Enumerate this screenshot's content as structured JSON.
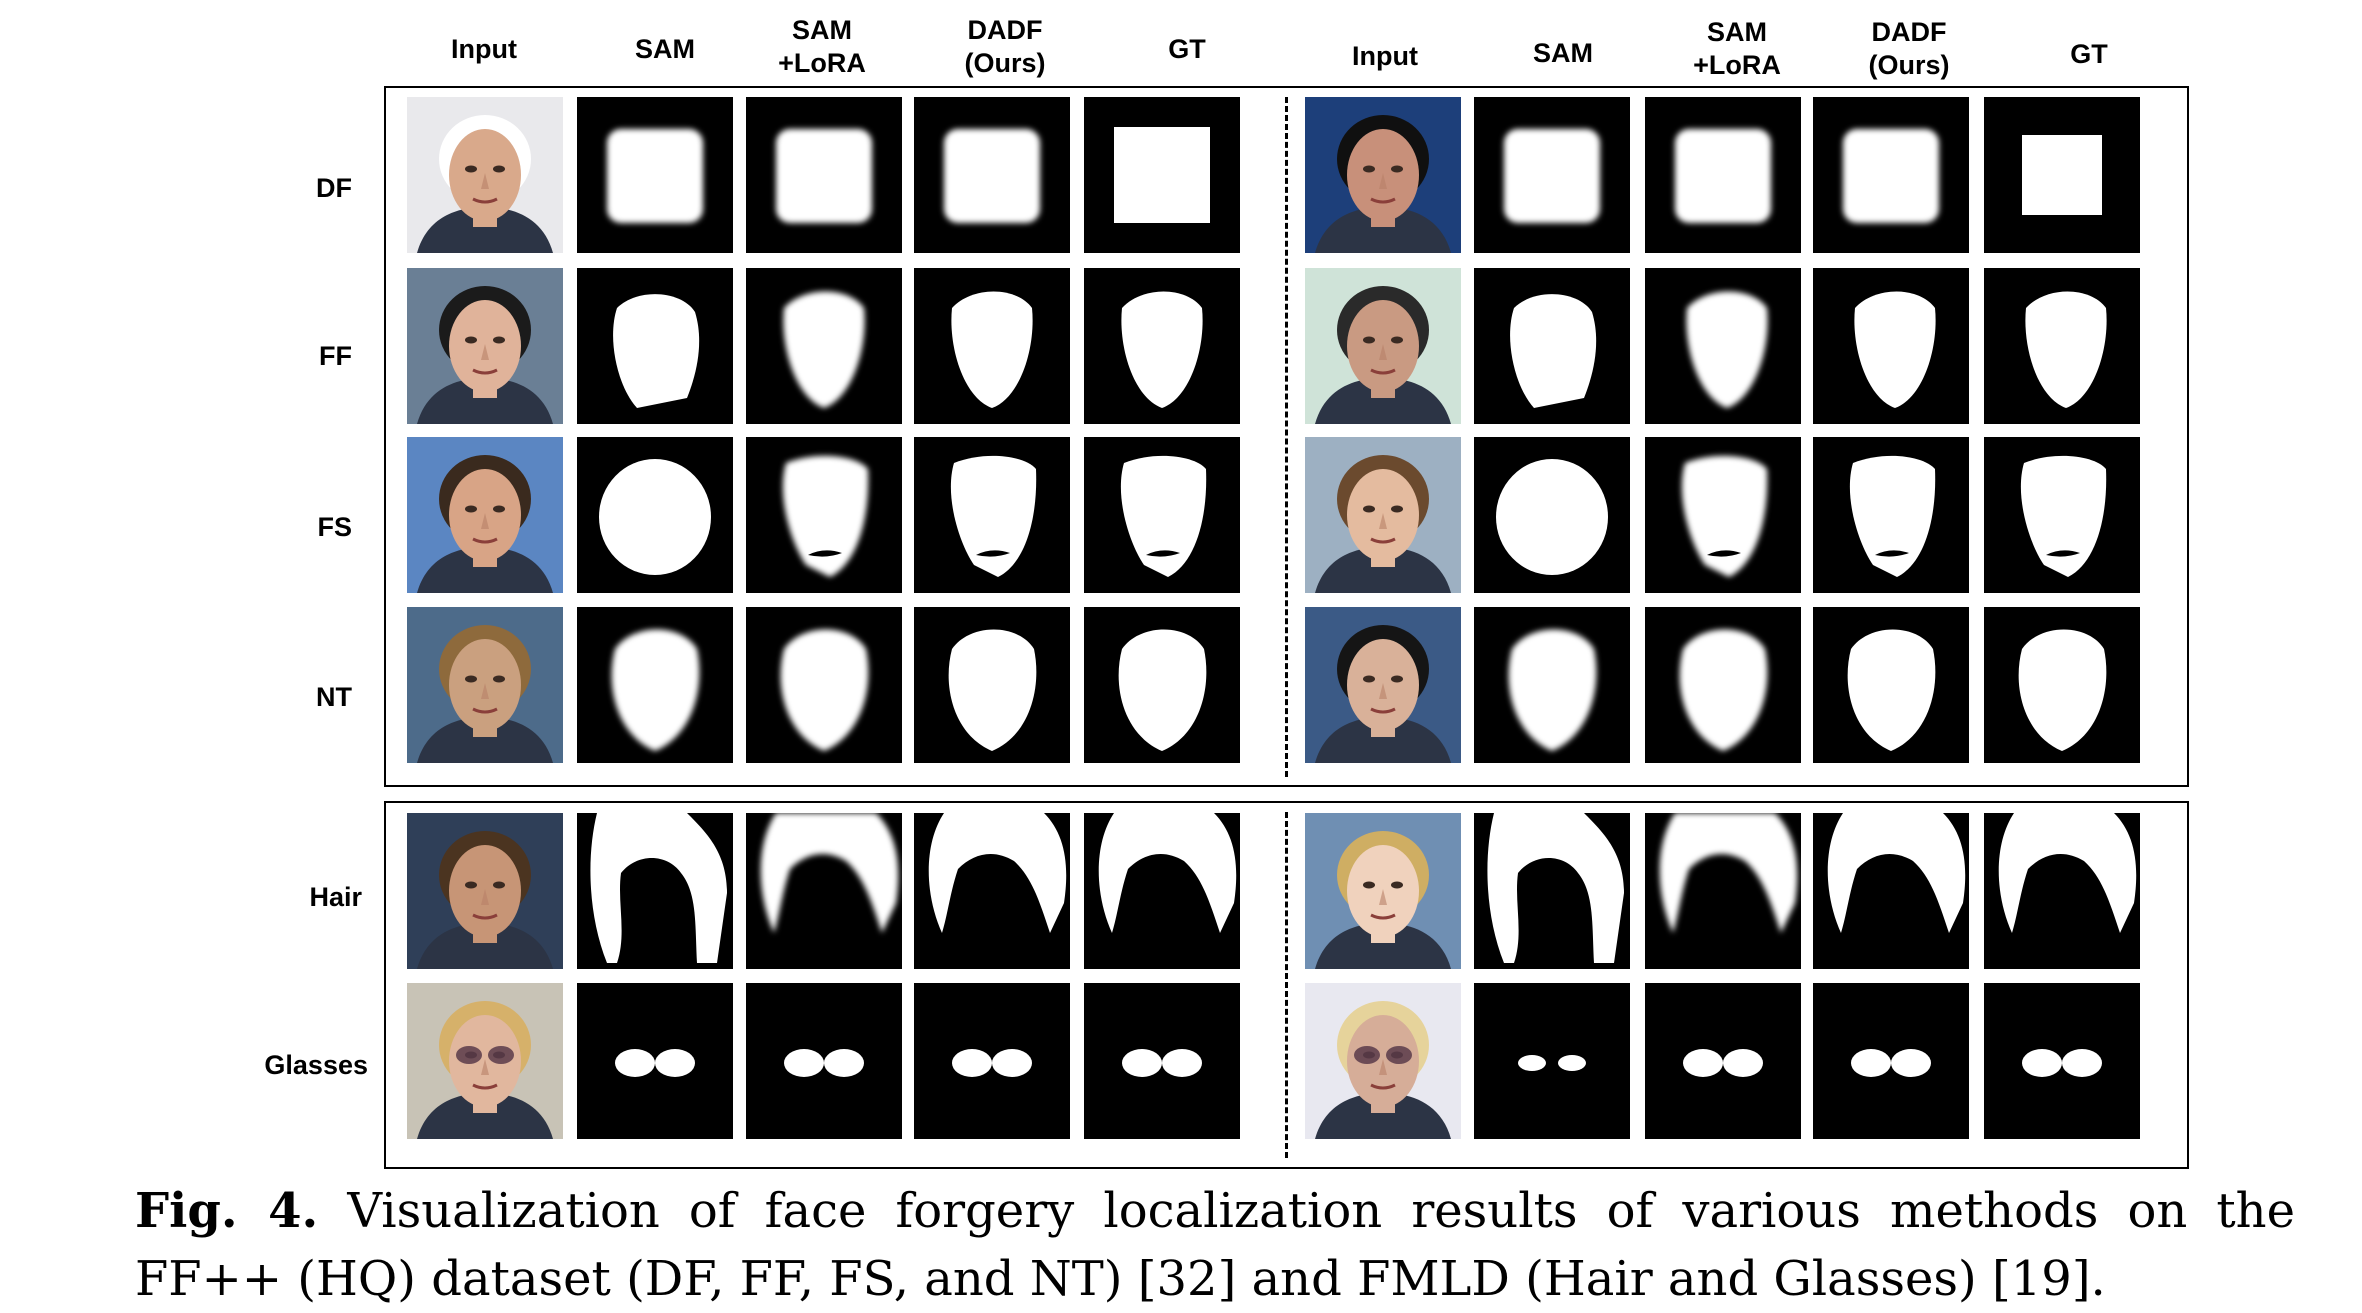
{
  "figure": {
    "column_headers_left": [
      "Input",
      "SAM",
      "SAM\n+LoRA",
      "DADF\n(Ours)",
      "GT"
    ],
    "column_headers_right": [
      "Input",
      "SAM",
      "SAM\n+LoRA",
      "DADF\n(Ours)",
      "GT"
    ],
    "rows_top_panel": [
      "DF",
      "FF",
      "FS",
      "NT"
    ],
    "rows_bottom_panel": [
      "Hair",
      "Glasses"
    ],
    "cells": {
      "input": "face photograph",
      "masks": "binary forgery mask (white on black)"
    },
    "colors": {
      "mask_fg": "#ffffff",
      "mask_bg": "#000000",
      "text": "#000000"
    }
  },
  "caption": {
    "label": "Fig. 4.",
    "line1_text": "Visualization of face forgery localization results of various methods on the",
    "line2_text": "FF++ (HQ) dataset (DF, FF, FS, and NT) [32] and FMLD (Hair and Glasses) [19]."
  }
}
